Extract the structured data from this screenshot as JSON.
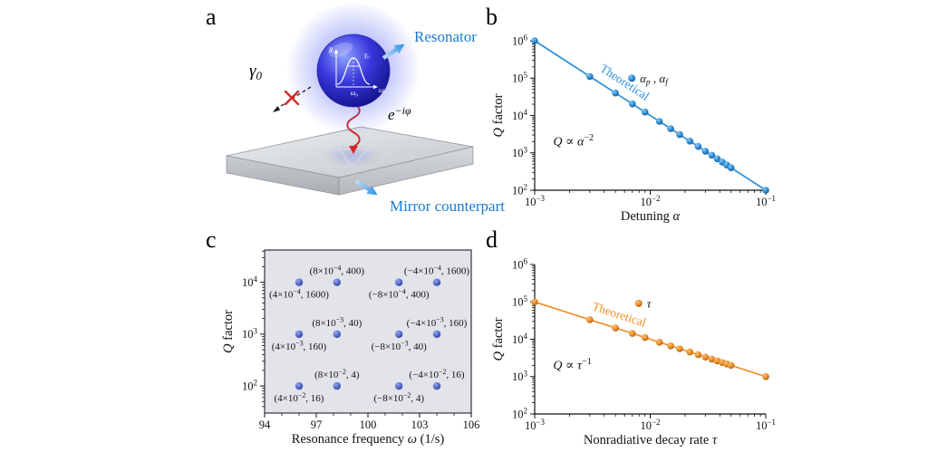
{
  "figure": {
    "panels": {
      "a": "a",
      "b": "b",
      "c": "c",
      "d": "d"
    }
  },
  "panel_a": {
    "resonator_label": "Resonator",
    "mirror_label": "Mirror counterpart",
    "gamma_base": "γ",
    "gamma_sub": "0",
    "phase_base": "e",
    "phase_exp": "−iφ",
    "inset": {
      "y_axis": "R",
      "width": "γ₀",
      "center": "ω₀",
      "x_axis": "ω"
    },
    "label_color": "#187bd4",
    "arrow_red": "#d62828"
  },
  "chart_data": [
    {
      "id": "panel-b",
      "type": "line",
      "x_scale": "log",
      "y_scale": "log",
      "xlim": [
        0.001,
        0.1
      ],
      "ylim": [
        100,
        1000000
      ],
      "x": [
        0.001,
        0.003,
        0.005,
        0.007,
        0.009,
        0.012,
        0.015,
        0.018,
        0.022,
        0.026,
        0.03,
        0.034,
        0.038,
        0.042,
        0.046,
        0.05,
        0.1
      ],
      "y": [
        1000000,
        111111,
        40000,
        20408,
        12346,
        6944,
        4444,
        3086,
        2066,
        1479,
        1111,
        865,
        693,
        567,
        473,
        400,
        100
      ],
      "color": "#2b8fd9",
      "color_light": "#8fc8f2",
      "color_dark": "#155d93",
      "r": 3.8,
      "x_ticks": [
        {
          "v": 0.001,
          "runs": [
            {
              "t": "10"
            },
            {
              "t": "−3",
              "sup": true
            }
          ]
        },
        {
          "v": 0.01,
          "runs": [
            {
              "t": "10"
            },
            {
              "t": "−2",
              "sup": true
            }
          ]
        },
        {
          "v": 0.1,
          "runs": [
            {
              "t": "10"
            },
            {
              "t": "−1",
              "sup": true
            }
          ]
        }
      ],
      "y_ticks": [
        {
          "v": 100,
          "runs": [
            {
              "t": "10"
            },
            {
              "t": "2",
              "sup": true
            }
          ]
        },
        {
          "v": 1000,
          "runs": [
            {
              "t": "10"
            },
            {
              "t": "3",
              "sup": true
            }
          ]
        },
        {
          "v": 10000,
          "runs": [
            {
              "t": "10"
            },
            {
              "t": "4",
              "sup": true
            }
          ]
        },
        {
          "v": 100000,
          "runs": [
            {
              "t": "10"
            },
            {
              "t": "5",
              "sup": true
            }
          ]
        },
        {
          "v": 1000000,
          "runs": [
            {
              "t": "10"
            },
            {
              "t": "6",
              "sup": true
            }
          ]
        }
      ],
      "xlabel_runs": [
        {
          "t": "Detuning "
        },
        {
          "t": "α",
          "i": true
        }
      ],
      "ylabel_runs": [
        {
          "t": "Q",
          "i": true
        },
        {
          "t": " factor"
        }
      ],
      "legend": {
        "fx": 0.42,
        "fy": 0.25,
        "runs": [
          {
            "t": "α",
            "i": true
          },
          {
            "t": "p",
            "i": true,
            "sub": true
          },
          {
            "t": " , "
          },
          {
            "t": "α",
            "i": true
          },
          {
            "t": "f",
            "i": true,
            "sub": true
          }
        ]
      },
      "line_label": {
        "text": "Theoretical",
        "fx": 0.38,
        "fy": 0.3,
        "angle": 33
      },
      "annotation": {
        "fx": 0.08,
        "fy": 0.7,
        "runs": [
          {
            "t": "Q",
            "i": true
          },
          {
            "t": " ∝ "
          },
          {
            "t": "α",
            "i": true
          },
          {
            "t": "−2",
            "sup": true
          }
        ]
      }
    },
    {
      "id": "panel-c",
      "type": "scatter",
      "x_scale": "linear",
      "y_scale": "log",
      "xlim": [
        94,
        106
      ],
      "ylim": [
        30,
        42000
      ],
      "x_minor_step": 1,
      "bg": "#e3e4ea",
      "frame": "box",
      "color": "#5a6ed2",
      "color_light": "#96a5ee",
      "color_dark": "#333f96",
      "r": 4.2,
      "x_ticks": [
        {
          "v": 94,
          "runs": [
            {
              "t": "94"
            }
          ]
        },
        {
          "v": 97,
          "runs": [
            {
              "t": "97"
            }
          ]
        },
        {
          "v": 100,
          "runs": [
            {
              "t": "100"
            }
          ]
        },
        {
          "v": 103,
          "runs": [
            {
              "t": "103"
            }
          ]
        },
        {
          "v": 106,
          "runs": [
            {
              "t": "106"
            }
          ]
        }
      ],
      "y_ticks": [
        {
          "v": 100,
          "runs": [
            {
              "t": "10"
            },
            {
              "t": "2",
              "sup": true
            }
          ]
        },
        {
          "v": 1000,
          "runs": [
            {
              "t": "10"
            },
            {
              "t": "3",
              "sup": true
            }
          ]
        },
        {
          "v": 10000,
          "runs": [
            {
              "t": "10"
            },
            {
              "t": "4",
              "sup": true
            }
          ]
        }
      ],
      "xlabel_runs": [
        {
          "t": "Resonance frequency "
        },
        {
          "t": "ω",
          "i": true
        },
        {
          "t": " (1/s)"
        }
      ],
      "ylabel_runs": [
        {
          "t": "Q",
          "i": true
        },
        {
          "t": " factor"
        }
      ],
      "points": [
        {
          "omega": 96,
          "Q": 10000,
          "m": "4",
          "e": "−4",
          "val": "1600",
          "side": "below"
        },
        {
          "omega": 98.2,
          "Q": 10000,
          "m": "8",
          "e": "−4",
          "val": "400",
          "side": "above"
        },
        {
          "omega": 101.8,
          "Q": 10000,
          "m": "−8",
          "e": "−4",
          "val": "400",
          "side": "below"
        },
        {
          "omega": 104,
          "Q": 10000,
          "m": "−4",
          "e": "−4",
          "val": "1600",
          "side": "above"
        },
        {
          "omega": 96,
          "Q": 1000,
          "m": "4",
          "e": "−3",
          "val": "160",
          "side": "below"
        },
        {
          "omega": 98.2,
          "Q": 1000,
          "m": "8",
          "e": "−3",
          "val": "40",
          "side": "above"
        },
        {
          "omega": 101.8,
          "Q": 1000,
          "m": "−8",
          "e": "−3",
          "val": "40",
          "side": "below"
        },
        {
          "omega": 104,
          "Q": 1000,
          "m": "−4",
          "e": "−3",
          "val": "160",
          "side": "above"
        },
        {
          "omega": 96,
          "Q": 100,
          "m": "4",
          "e": "−2",
          "val": "16",
          "side": "below"
        },
        {
          "omega": 98.2,
          "Q": 100,
          "m": "8",
          "e": "−2",
          "val": "4",
          "side": "above"
        },
        {
          "omega": 101.8,
          "Q": 100,
          "m": "−8",
          "e": "−2",
          "val": "4",
          "side": "below"
        },
        {
          "omega": 104,
          "Q": 100,
          "m": "−4",
          "e": "−2",
          "val": "16",
          "side": "above"
        }
      ]
    },
    {
      "id": "panel-d",
      "type": "line",
      "x_scale": "log",
      "y_scale": "log",
      "xlim": [
        0.001,
        0.1
      ],
      "ylim": [
        100,
        1000000
      ],
      "x": [
        0.001,
        0.003,
        0.005,
        0.007,
        0.009,
        0.012,
        0.015,
        0.018,
        0.022,
        0.026,
        0.03,
        0.034,
        0.038,
        0.042,
        0.046,
        0.05,
        0.1
      ],
      "y": [
        100000,
        33333,
        20000,
        14286,
        11111,
        8333,
        6667,
        5556,
        4545,
        3846,
        3333,
        2941,
        2632,
        2381,
        2174,
        2000,
        1000
      ],
      "color": "#ef8f29",
      "color_light": "#f8c17c",
      "color_dark": "#a85c0e",
      "r": 3.8,
      "x_ticks": [
        {
          "v": 0.001,
          "runs": [
            {
              "t": "10"
            },
            {
              "t": "−3",
              "sup": true
            }
          ]
        },
        {
          "v": 0.01,
          "runs": [
            {
              "t": "10"
            },
            {
              "t": "−2",
              "sup": true
            }
          ]
        },
        {
          "v": 0.1,
          "runs": [
            {
              "t": "10"
            },
            {
              "t": "−1",
              "sup": true
            }
          ]
        }
      ],
      "y_ticks": [
        {
          "v": 100,
          "runs": [
            {
              "t": "10"
            },
            {
              "t": "2",
              "sup": true
            }
          ]
        },
        {
          "v": 1000,
          "runs": [
            {
              "t": "10"
            },
            {
              "t": "3",
              "sup": true
            }
          ]
        },
        {
          "v": 10000,
          "runs": [
            {
              "t": "10"
            },
            {
              "t": "4",
              "sup": true
            }
          ]
        },
        {
          "v": 100000,
          "runs": [
            {
              "t": "10"
            },
            {
              "t": "5",
              "sup": true
            }
          ]
        },
        {
          "v": 1000000,
          "runs": [
            {
              "t": "10"
            },
            {
              "t": "6",
              "sup": true
            }
          ]
        }
      ],
      "xlabel_runs": [
        {
          "t": "Nonradiative decay rate "
        },
        {
          "t": "τ",
          "i": true
        }
      ],
      "ylabel_runs": [
        {
          "t": "Q",
          "i": true
        },
        {
          "t": " factor"
        }
      ],
      "legend": {
        "fx": 0.45,
        "fy": 0.26,
        "runs": [
          {
            "t": "τ",
            "i": true
          }
        ]
      },
      "line_label": {
        "text": "Theoretical",
        "fx": 0.36,
        "fy": 0.36,
        "angle": 18
      },
      "annotation": {
        "fx": 0.08,
        "fy": 0.7,
        "runs": [
          {
            "t": "Q",
            "i": true
          },
          {
            "t": " ∝ "
          },
          {
            "t": "τ",
            "i": true
          },
          {
            "t": "−1",
            "sup": true
          }
        ]
      }
    }
  ]
}
